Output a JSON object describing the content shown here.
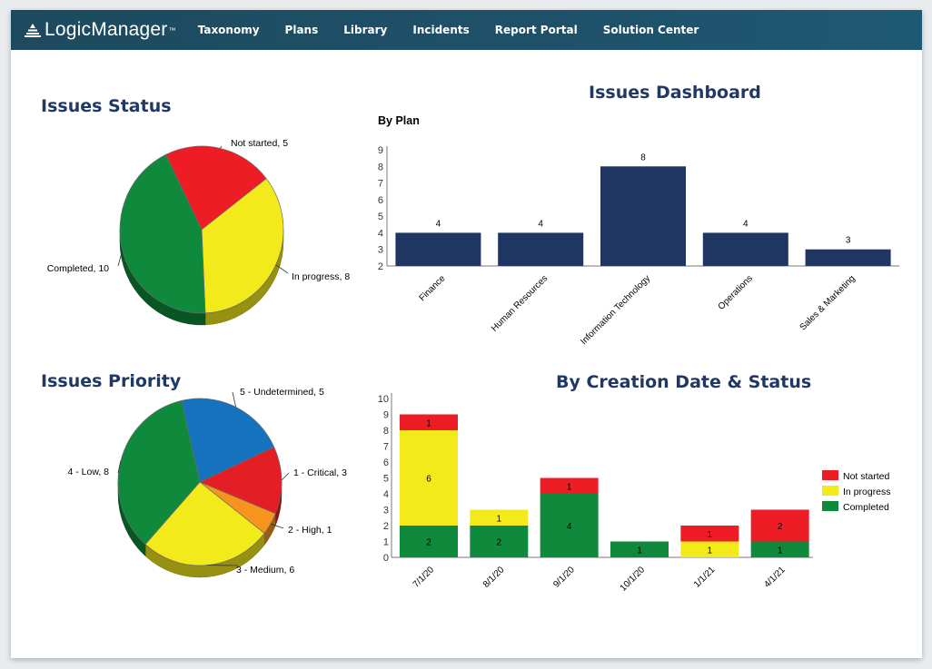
{
  "app": {
    "logo_text": "LogicManager",
    "logo_tm": "™",
    "nav": [
      "Taxonomy",
      "Plans",
      "Library",
      "Incidents",
      "Report Portal",
      "Solution Center"
    ]
  },
  "titles": {
    "issues_status": "Issues Status",
    "issues_dashboard": "Issues Dashboard",
    "issues_priority": "Issues Priority",
    "by_creation": "By Creation Date & Status"
  },
  "colors": {
    "navy": "#1f3864",
    "bar": "#1f3663",
    "red": "#ee1c25",
    "yellow": "#f3ea1c",
    "green": "#0f8a3c",
    "blue": "#1472bf",
    "orange": "#f7941d",
    "nav_bg": "#1e5169"
  },
  "chart_data": [
    {
      "type": "pie",
      "title": "Issues Status",
      "slices": [
        {
          "label": "Not started",
          "value": 5,
          "color": "#ee1c25"
        },
        {
          "label": "In progress",
          "value": 8,
          "color": "#f3ea1c"
        },
        {
          "label": "Completed",
          "value": 10,
          "color": "#0f8a3c"
        }
      ],
      "slice_labels": [
        "Not started, 5",
        "In progress, 8",
        "Completed, 10"
      ]
    },
    {
      "type": "bar",
      "title": "By Plan",
      "categories": [
        "Finance",
        "Human Resources",
        "Information Technology",
        "Operations",
        "Sales & Marketing"
      ],
      "values": [
        4,
        4,
        8,
        4,
        3
      ],
      "ylim": [
        2,
        9
      ],
      "yticks": [
        "2",
        "3",
        "4",
        "5",
        "6",
        "7",
        "8",
        "9"
      ]
    },
    {
      "type": "pie",
      "title": "Issues Priority",
      "slices": [
        {
          "label": "5 - Undetermined",
          "value": 5,
          "color": "#1472bf"
        },
        {
          "label": "1 - Critical",
          "value": 3,
          "color": "#e31e25"
        },
        {
          "label": "2 - High",
          "value": 1,
          "color": "#f7941d"
        },
        {
          "label": "3 - Medium",
          "value": 6,
          "color": "#f3ea1c"
        },
        {
          "label": "4 - Low",
          "value": 8,
          "color": "#0f8a3c"
        }
      ],
      "slice_labels": [
        "5 - Undetermined, 5",
        "1 - Critical, 3",
        "2 - High, 1",
        "3 - Medium, 6",
        "4 - Low, 8"
      ]
    },
    {
      "type": "bar",
      "stacked": true,
      "title": "By Creation Date & Status",
      "categories": [
        "7/1/20",
        "8/1/20",
        "9/1/20",
        "10/1/20",
        "1/1/21",
        "4/1/21"
      ],
      "series": [
        {
          "name": "Completed",
          "values": [
            2,
            2,
            4,
            1,
            0,
            1
          ],
          "color": "#0f8a3c"
        },
        {
          "name": "In progress",
          "values": [
            6,
            1,
            0,
            0,
            1,
            0
          ],
          "color": "#f3ea1c"
        },
        {
          "name": "Not started",
          "values": [
            1,
            0,
            1,
            0,
            1,
            2
          ],
          "color": "#ee1c25"
        }
      ],
      "ylim": [
        0,
        10
      ],
      "yticks": [
        "0",
        "1",
        "2",
        "3",
        "4",
        "5",
        "6",
        "7",
        "8",
        "9",
        "10"
      ],
      "legend": [
        "Not started",
        "In progress",
        "Completed"
      ],
      "legend_placement": "right"
    }
  ]
}
